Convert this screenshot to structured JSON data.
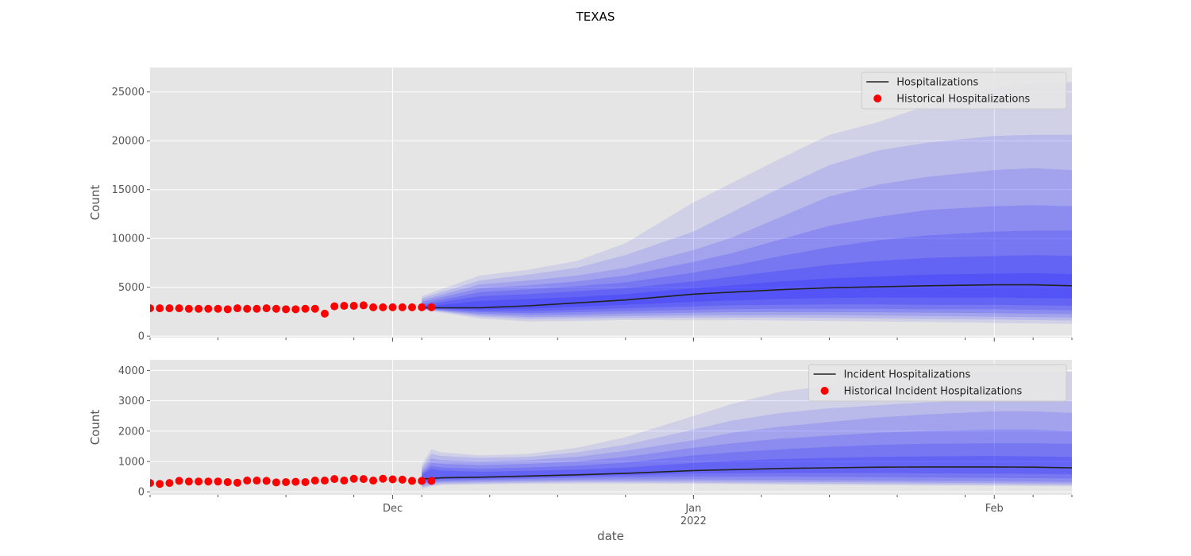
{
  "figure": {
    "title": "TEXAS",
    "xlabel": "date",
    "x_ticks": [
      {
        "date": "2021-12-01",
        "label": "Dec",
        "sublabel": ""
      },
      {
        "date": "2022-01-01",
        "label": "Jan",
        "sublabel": "2022"
      },
      {
        "date": "2022-02-01",
        "label": "Feb",
        "sublabel": ""
      }
    ],
    "xlim": [
      "2021-11-06",
      "2022-02-09"
    ]
  },
  "chart_data": [
    {
      "type": "line",
      "name": "cumulative",
      "ylabel": "Count",
      "ylim": [
        -150,
        27500
      ],
      "y_ticks": [
        0,
        5000,
        10000,
        15000,
        20000,
        25000
      ],
      "grid": true,
      "legend_placement": "top-right",
      "legend": [
        "Hospitalizations",
        "Historical Hospitalizations"
      ],
      "colors": {
        "line": "#222222",
        "points": "#ff0000",
        "band": "#1a1aff"
      },
      "historical": {
        "x": [
          "2021-11-06",
          "2021-11-07",
          "2021-11-08",
          "2021-11-09",
          "2021-11-10",
          "2021-11-11",
          "2021-11-12",
          "2021-11-13",
          "2021-11-14",
          "2021-11-15",
          "2021-11-16",
          "2021-11-17",
          "2021-11-18",
          "2021-11-19",
          "2021-11-20",
          "2021-11-21",
          "2021-11-22",
          "2021-11-23",
          "2021-11-24",
          "2021-11-25",
          "2021-11-26",
          "2021-11-27",
          "2021-11-28",
          "2021-11-29",
          "2021-11-30",
          "2021-12-01",
          "2021-12-02",
          "2021-12-03",
          "2021-12-04",
          "2021-12-05"
        ],
        "y": [
          2850,
          2850,
          2850,
          2850,
          2800,
          2800,
          2800,
          2800,
          2750,
          2850,
          2800,
          2800,
          2850,
          2800,
          2750,
          2750,
          2800,
          2800,
          2300,
          3050,
          3100,
          3100,
          3150,
          2950,
          2950,
          2950,
          2950,
          2950,
          2950,
          2950
        ]
      },
      "forecast": {
        "x": [
          "2021-12-04",
          "2021-12-10",
          "2021-12-15",
          "2021-12-20",
          "2021-12-25",
          "2022-01-01",
          "2022-01-05",
          "2022-01-10",
          "2022-01-15",
          "2022-01-20",
          "2022-01-25",
          "2022-02-01",
          "2022-02-05",
          "2022-02-09"
        ],
        "median": [
          2900,
          2900,
          3100,
          3400,
          3700,
          4300,
          4500,
          4750,
          4950,
          5050,
          5150,
          5250,
          5250,
          5150
        ],
        "bands": [
          {
            "lower": [
              2700,
              1800,
              1500,
              1550,
              1650,
              1650,
              1650,
              1600,
              1550,
              1500,
              1450,
              1350,
              1300,
              1250
            ],
            "upper": [
              4100,
              6200,
              6800,
              7700,
              9500,
              13700,
              15700,
              18200,
              20600,
              21900,
              23600,
              25500,
              25900,
              26000
            ]
          },
          {
            "lower": [
              2750,
              2000,
              1750,
              1800,
              1850,
              1900,
              1900,
              1900,
              1850,
              1800,
              1750,
              1700,
              1650,
              1600
            ],
            "upper": [
              3900,
              5700,
              6300,
              7000,
              8300,
              10700,
              12700,
              15200,
              17500,
              19000,
              19800,
              20500,
              20600,
              20600
            ]
          },
          {
            "lower": [
              2780,
              2150,
              1950,
              2000,
              2050,
              2150,
              2150,
              2150,
              2150,
              2100,
              2050,
              2000,
              1950,
              1900
            ],
            "upper": [
              3700,
              5300,
              5700,
              6200,
              7000,
              8800,
              10100,
              12200,
              14300,
              15500,
              16300,
              17000,
              17200,
              17000
            ]
          },
          {
            "lower": [
              2800,
              2300,
              2150,
              2200,
              2300,
              2400,
              2450,
              2450,
              2450,
              2450,
              2400,
              2350,
              2300,
              2250
            ],
            "upper": [
              3500,
              4900,
              5200,
              5600,
              6200,
              7600,
              8500,
              9900,
              11300,
              12200,
              12900,
              13300,
              13400,
              13300
            ]
          },
          {
            "lower": [
              2820,
              2450,
              2350,
              2450,
              2550,
              2700,
              2750,
              2800,
              2800,
              2800,
              2750,
              2750,
              2700,
              2650
            ],
            "upper": [
              3300,
              4500,
              4800,
              5100,
              5500,
              6500,
              7200,
              8200,
              9100,
              9800,
              10300,
              10700,
              10800,
              10800
            ]
          },
          {
            "lower": [
              2850,
              2600,
              2550,
              2700,
              2850,
              3050,
              3150,
              3200,
              3250,
              3250,
              3200,
              3200,
              3150,
              3100
            ],
            "upper": [
              3150,
              4100,
              4300,
              4600,
              4900,
              5600,
              6100,
              6700,
              7300,
              7700,
              8000,
              8200,
              8300,
              8200
            ]
          },
          {
            "lower": [
              2870,
              2750,
              2800,
              3000,
              3200,
              3500,
              3650,
              3800,
              3900,
              3950,
              3950,
              3950,
              3900,
              3850
            ],
            "upper": [
              3000,
              3600,
              3800,
              4000,
              4300,
              4900,
              5200,
              5600,
              5900,
              6100,
              6300,
              6400,
              6450,
              6350
            ]
          }
        ]
      }
    },
    {
      "type": "line",
      "name": "incident",
      "ylabel": "Count",
      "ylim": [
        -100,
        4350
      ],
      "y_ticks": [
        0,
        1000,
        2000,
        3000,
        4000
      ],
      "grid": true,
      "legend_placement": "top-right",
      "legend": [
        "Incident Hospitalizations",
        "Historical Incident Hospitalizations"
      ],
      "colors": {
        "line": "#222222",
        "points": "#ff0000",
        "band": "#1a1aff"
      },
      "historical": {
        "x": [
          "2021-11-06",
          "2021-11-07",
          "2021-11-08",
          "2021-11-09",
          "2021-11-10",
          "2021-11-11",
          "2021-11-12",
          "2021-11-13",
          "2021-11-14",
          "2021-11-15",
          "2021-11-16",
          "2021-11-17",
          "2021-11-18",
          "2021-11-19",
          "2021-11-20",
          "2021-11-21",
          "2021-11-22",
          "2021-11-23",
          "2021-11-24",
          "2021-11-25",
          "2021-11-26",
          "2021-11-27",
          "2021-11-28",
          "2021-11-29",
          "2021-11-30",
          "2021-12-01",
          "2021-12-02",
          "2021-12-03",
          "2021-12-04",
          "2021-12-05"
        ],
        "y": [
          290,
          260,
          290,
          360,
          340,
          340,
          340,
          340,
          320,
          300,
          370,
          370,
          360,
          310,
          320,
          330,
          320,
          370,
          370,
          420,
          370,
          430,
          420,
          370,
          430,
          410,
          400,
          360,
          360,
          360
        ]
      },
      "forecast": {
        "x": [
          "2021-12-04",
          "2021-12-05",
          "2021-12-06",
          "2021-12-10",
          "2021-12-15",
          "2021-12-20",
          "2021-12-25",
          "2022-01-01",
          "2022-01-05",
          "2022-01-10",
          "2022-01-15",
          "2022-01-20",
          "2022-01-25",
          "2022-02-01",
          "2022-02-05",
          "2022-02-09"
        ],
        "median": [
          430,
          440,
          460,
          480,
          520,
          560,
          610,
          700,
          730,
          770,
          790,
          810,
          820,
          820,
          810,
          790
        ],
        "bands": [
          {
            "lower": [
              100,
              180,
              220,
              240,
              260,
              270,
              270,
              260,
              250,
              240,
              230,
              220,
              210,
              200,
              190,
              180
            ],
            "upper": [
              900,
              1400,
              1300,
              1200,
              1250,
              1450,
              1800,
              2500,
              2900,
              3300,
              3500,
              3700,
              3800,
              3950,
              3950,
              3950
            ]
          },
          {
            "lower": [
              150,
              220,
              260,
              280,
              300,
              310,
              310,
              300,
              290,
              280,
              270,
              260,
              250,
              240,
              230,
              220
            ],
            "upper": [
              800,
              1250,
              1180,
              1120,
              1150,
              1300,
              1550,
              2050,
              2350,
              2600,
              2750,
              2850,
              2950,
              3050,
              3050,
              3000
            ]
          },
          {
            "lower": [
              200,
              260,
              300,
              320,
              340,
              350,
              350,
              350,
              340,
              330,
              320,
              310,
              300,
              290,
              280,
              270
            ],
            "upper": [
              720,
              1100,
              1050,
              1000,
              1050,
              1150,
              1350,
              1700,
              1950,
              2150,
              2300,
              2450,
              2550,
              2650,
              2650,
              2600
            ]
          },
          {
            "lower": [
              250,
              300,
              340,
              360,
              380,
              400,
              410,
              410,
              400,
              390,
              380,
              370,
              360,
              350,
              340,
              330
            ],
            "upper": [
              650,
              950,
              920,
              880,
              920,
              1000,
              1150,
              1450,
              1600,
              1750,
              1850,
              1950,
              2000,
              2050,
              2050,
              2000
            ]
          },
          {
            "lower": [
              300,
              340,
              380,
              400,
              430,
              460,
              480,
              500,
              500,
              500,
              490,
              480,
              470,
              460,
              450,
              440
            ],
            "upper": [
              600,
              850,
              800,
              760,
              800,
              860,
              960,
              1200,
              1300,
              1400,
              1480,
              1550,
              1580,
              1600,
              1600,
              1580
            ]
          },
          {
            "lower": [
              350,
              380,
              420,
              440,
              470,
              510,
              550,
              600,
              610,
              620,
              620,
              620,
              610,
              600,
              590,
              580
            ],
            "upper": [
              560,
              750,
              700,
              660,
              690,
              730,
              800,
              950,
              1020,
              1080,
              1120,
              1150,
              1170,
              1180,
              1170,
              1150
            ]
          }
        ]
      }
    }
  ]
}
